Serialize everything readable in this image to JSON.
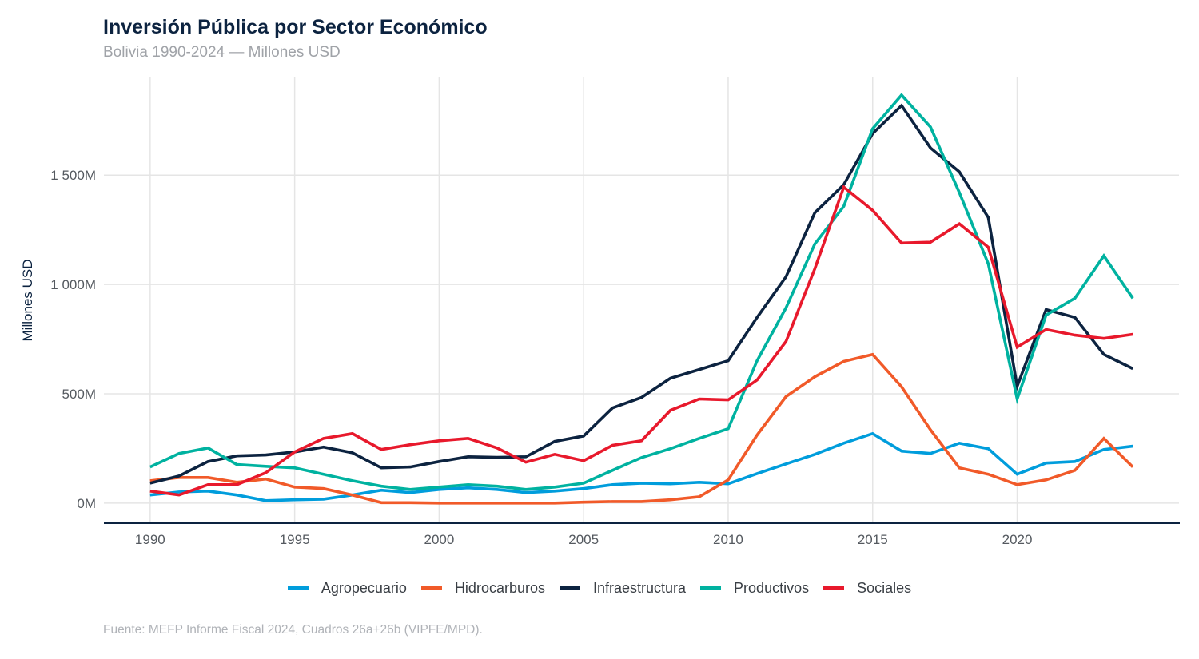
{
  "chart_data": {
    "type": "line",
    "title": "Inversión Pública por Sector Económico",
    "subtitle": "Bolivia 1990-2024 — Millones USD",
    "caption": "Fuente: MEFP Informe Fiscal 2024, Cuadros 26a+26b (VIPFE/MPD).",
    "xlabel": "",
    "ylabel": "Millones USD",
    "xlim": [
      1988.4,
      2025.6
    ],
    "ylim": [
      -92,
      1950
    ],
    "x_ticks": [
      1990,
      1995,
      2000,
      2005,
      2010,
      2015,
      2020
    ],
    "y_ticks": [
      {
        "value": 0,
        "label": "0M"
      },
      {
        "value": 500,
        "label": "500M"
      },
      {
        "value": 1000,
        "label": "1 000M"
      },
      {
        "value": 1500,
        "label": "1 500M"
      }
    ],
    "grid": true,
    "legend_position": "bottom",
    "x": [
      1990,
      1991,
      1992,
      1993,
      1994,
      1995,
      1996,
      1997,
      1998,
      1999,
      2000,
      2001,
      2002,
      2003,
      2004,
      2005,
      2006,
      2007,
      2008,
      2009,
      2010,
      2011,
      2012,
      2013,
      2014,
      2015,
      2016,
      2017,
      2018,
      2019,
      2020,
      2021,
      2022,
      2023,
      2024
    ],
    "series": [
      {
        "name": "Agropecuario",
        "color": "#009ddc",
        "values": [
          37,
          51,
          55,
          37,
          11,
          15,
          18,
          37,
          59,
          48,
          62,
          70,
          62,
          48,
          55,
          66,
          84,
          91,
          88,
          95,
          88,
          135,
          179,
          223,
          274,
          318,
          238,
          227,
          274,
          249,
          132,
          183,
          190,
          245,
          260
        ]
      },
      {
        "name": "Hidrocarburos",
        "color": "#f15a29",
        "values": [
          102,
          117,
          117,
          95,
          110,
          73,
          66,
          37,
          2,
          2,
          0,
          0,
          0,
          0,
          0,
          4,
          7,
          7,
          15,
          29,
          106,
          311,
          487,
          578,
          648,
          680,
          532,
          335,
          161,
          132,
          84,
          106,
          150,
          296,
          165
        ]
      },
      {
        "name": "Infraestructura",
        "color": "#0c2340",
        "values": [
          91,
          124,
          190,
          216,
          220,
          234,
          256,
          230,
          161,
          165,
          190,
          212,
          209,
          212,
          282,
          307,
          435,
          483,
          571,
          611,
          651,
          849,
          1035,
          1328,
          1456,
          1690,
          1818,
          1624,
          1515,
          1306,
          534,
          885,
          849,
          680,
          615
        ]
      },
      {
        "name": "Productivos",
        "color": "#00b2a0",
        "values": [
          165,
          227,
          252,
          176,
          168,
          161,
          132,
          102,
          77,
          62,
          73,
          84,
          77,
          62,
          73,
          91,
          150,
          208,
          249,
          296,
          340,
          651,
          893,
          1185,
          1357,
          1712,
          1866,
          1720,
          1420,
          1094,
          476,
          860,
          937,
          1131,
          937
        ]
      },
      {
        "name": "Sociales",
        "color": "#e8192c",
        "values": [
          55,
          37,
          84,
          84,
          139,
          234,
          296,
          318,
          245,
          267,
          285,
          296,
          252,
          187,
          223,
          194,
          264,
          285,
          424,
          476,
          472,
          563,
          739,
          1072,
          1445,
          1339,
          1189,
          1193,
          1277,
          1170,
          713,
          794,
          768,
          753,
          772
        ]
      }
    ]
  }
}
